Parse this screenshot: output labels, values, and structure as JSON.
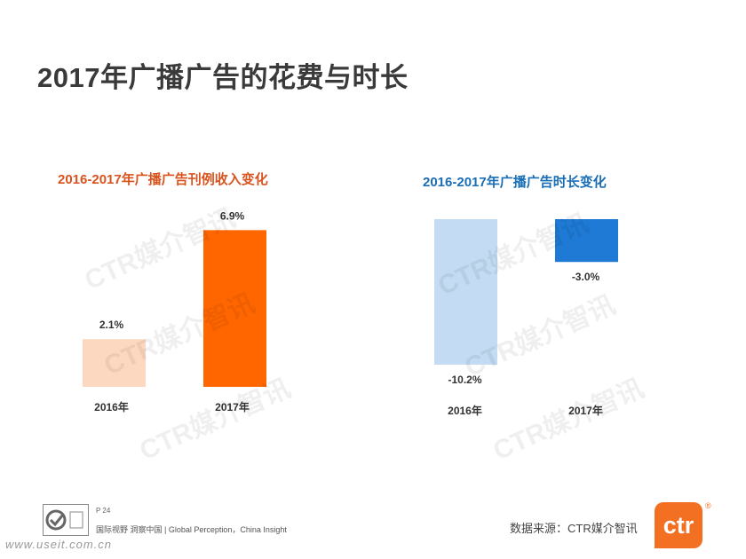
{
  "page": {
    "title": "2017年广播广告的花费与时长"
  },
  "watermark_text": "CTR媒介智讯",
  "colors": {
    "left_2016": "#fcd8c0",
    "left_2017": "#ff6600",
    "left_title": "#d9531e",
    "right_2016": "#c3dcf3",
    "right_2017": "#1e7ad4",
    "right_title": "#1a6eb5"
  },
  "chart_data": [
    {
      "type": "bar",
      "title": "2016-2017年广播广告刊例收入变化",
      "categories": [
        "2016年",
        "2017年"
      ],
      "values": [
        2.1,
        6.9
      ],
      "data_labels": [
        "2.1%",
        "6.9%"
      ],
      "unit": "%"
    },
    {
      "type": "bar",
      "title": "2016-2017年广播广告时长变化",
      "categories": [
        "2016年",
        "2017年"
      ],
      "values": [
        -10.2,
        -3.0
      ],
      "data_labels": [
        "-10.2%",
        "-3.0%"
      ],
      "unit": "%"
    }
  ],
  "footer": {
    "page_number": "P 24",
    "slogan": "国际视野  洞察中国 | Global Perception，China Insight",
    "source": "数据来源：CTR媒介智讯",
    "brand_logo_text": "ctr",
    "registered_mark": "®",
    "site_watermark": "www.useit.com.cn"
  }
}
